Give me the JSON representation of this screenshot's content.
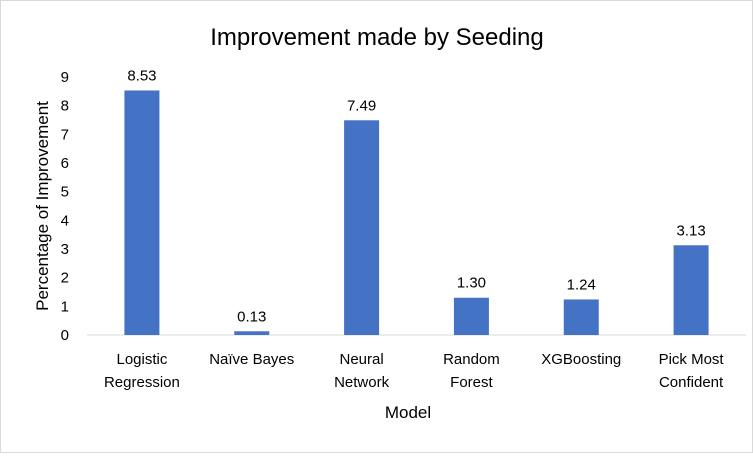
{
  "chart_data": {
    "type": "bar",
    "title": "Improvement made by Seeding",
    "xlabel": "Model",
    "ylabel": "Percentage of Improvement",
    "categories": [
      [
        "Logistic",
        "Regression"
      ],
      [
        "Naïve Bayes"
      ],
      [
        "Neural",
        "Network"
      ],
      [
        "Random",
        "Forest"
      ],
      [
        "XGBoosting"
      ],
      [
        "Pick Most",
        "Confident"
      ]
    ],
    "values": [
      8.53,
      0.13,
      7.49,
      1.3,
      1.24,
      3.13
    ],
    "data_labels": [
      "8.53",
      "0.13",
      "7.49",
      "1.30",
      "1.24",
      "3.13"
    ],
    "yticks": [
      0,
      1,
      2,
      3,
      4,
      5,
      6,
      7,
      8,
      9
    ],
    "ylim": [
      0,
      9
    ],
    "grid": false,
    "legend": "none",
    "bar_color": "#4472C4"
  }
}
